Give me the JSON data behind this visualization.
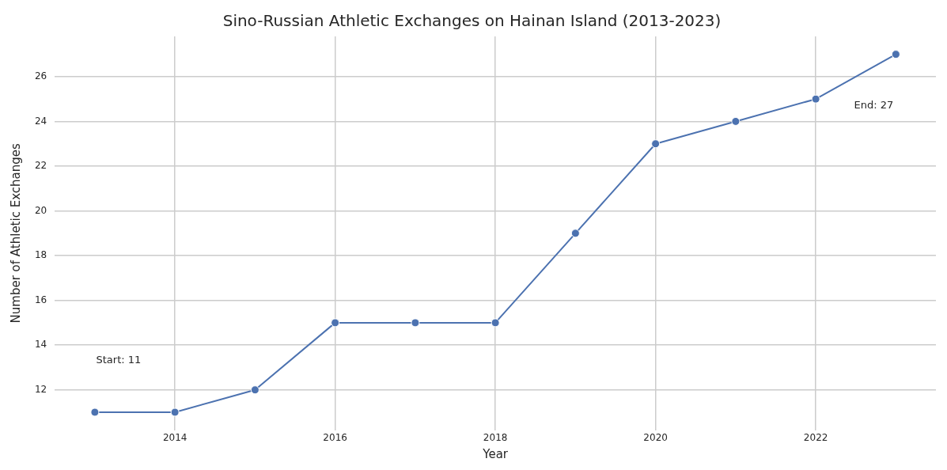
{
  "chart_data": {
    "type": "line",
    "title": "Sino-Russian Athletic Exchanges on Hainan Island (2013-2023)",
    "xlabel": "Year",
    "ylabel": "Number of Athletic Exchanges",
    "x": [
      2013,
      2014,
      2015,
      2016,
      2017,
      2018,
      2019,
      2020,
      2021,
      2022,
      2023
    ],
    "series": [
      {
        "color": "#4c72b0",
        "values": [
          11,
          11,
          12,
          15,
          15,
          15,
          19,
          23,
          24,
          25,
          27
        ]
      }
    ],
    "xlim": [
      2012.5,
      2023.5
    ],
    "xticks": [
      2014,
      2016,
      2018,
      2020,
      2022
    ],
    "ylim": [
      10.2,
      27.8
    ],
    "yticks": [
      12,
      14,
      16,
      18,
      20,
      22,
      24,
      26
    ],
    "grid": true,
    "legend": false,
    "marker": "circle",
    "line_style": "solid",
    "annotations": [
      "Start: 11",
      "End: 27"
    ]
  }
}
